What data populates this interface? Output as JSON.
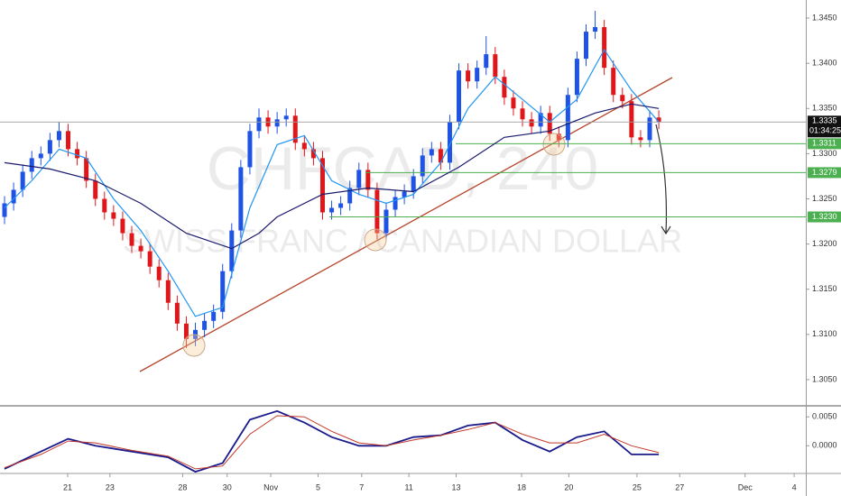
{
  "chart_data": [
    {
      "type": "candlestick",
      "watermark_symbol": "CHFCAD, 240",
      "watermark_name": "SWISS FRANC / CANADIAN DOLLAR",
      "up_color": "#1e53e5",
      "down_color": "#e0171a",
      "xlim": [
        -0.5,
        88.18
      ],
      "xticks": [
        {
          "value": 6.95,
          "label": "21"
        },
        {
          "value": 11.6,
          "label": "23"
        },
        {
          "value": 19.6,
          "label": "28"
        },
        {
          "value": 24.5,
          "label": "30"
        },
        {
          "value": 29.3,
          "label": "Nov"
        },
        {
          "value": 34.5,
          "label": "5"
        },
        {
          "value": 39.3,
          "label": "7"
        },
        {
          "value": 44.5,
          "label": "11"
        },
        {
          "value": 49.7,
          "label": "13"
        },
        {
          "value": 56.9,
          "label": "18"
        },
        {
          "value": 62.1,
          "label": "20"
        },
        {
          "value": 69.6,
          "label": "25"
        },
        {
          "value": 74.3,
          "label": "27"
        },
        {
          "value": 81.5,
          "label": "Dec"
        },
        {
          "value": 86.9,
          "label": "4"
        }
      ],
      "ylim": [
        1.3021,
        1.347
      ],
      "yticks": [
        {
          "value": 1.305,
          "label": "1.3050"
        },
        {
          "value": 1.31,
          "label": "1.3100"
        },
        {
          "value": 1.315,
          "label": "1.3150"
        },
        {
          "value": 1.32,
          "label": "1.3200"
        },
        {
          "value": 1.325,
          "label": "1.3250"
        },
        {
          "value": 1.33,
          "label": "1.3300"
        },
        {
          "value": 1.335,
          "label": "1.3350"
        },
        {
          "value": 1.34,
          "label": "1.3400"
        },
        {
          "value": 1.345,
          "label": "1.3450"
        }
      ],
      "open": [
        1.323,
        1.3245,
        1.326,
        1.328,
        1.3295,
        1.33,
        1.3315,
        1.3325,
        1.3305,
        1.3295,
        1.327,
        1.325,
        1.3235,
        1.3228,
        1.3212,
        1.3198,
        1.3192,
        1.3175,
        1.316,
        1.3135,
        1.3112,
        1.3095,
        1.3105,
        1.3115,
        1.3125,
        1.317,
        1.3215,
        1.3285,
        1.3325,
        1.334,
        1.333,
        1.3338,
        1.3342,
        1.3312,
        1.3305,
        1.3295,
        1.3235,
        1.324,
        1.3245,
        1.3262,
        1.3282,
        1.326,
        1.3212,
        1.3238,
        1.3252,
        1.3258,
        1.3275,
        1.3298,
        1.3305,
        1.329,
        1.3335,
        1.3392,
        1.338,
        1.3395,
        1.341,
        1.3385,
        1.3362,
        1.335,
        1.3338,
        1.333,
        1.3345,
        1.3322,
        1.3315,
        1.3365,
        1.3405,
        1.3435,
        1.344,
        1.3395,
        1.3365,
        1.3358,
        1.3318,
        1.3315,
        1.334
      ],
      "high": [
        1.3253,
        1.3268,
        1.3288,
        1.3303,
        1.3308,
        1.3323,
        1.3335,
        1.3333,
        1.3313,
        1.3303,
        1.3278,
        1.3258,
        1.3243,
        1.3236,
        1.322,
        1.3206,
        1.32,
        1.3183,
        1.3168,
        1.3143,
        1.312,
        1.3113,
        1.3123,
        1.3133,
        1.3178,
        1.3223,
        1.3293,
        1.3333,
        1.335,
        1.3348,
        1.3346,
        1.335,
        1.335,
        1.332,
        1.3313,
        1.3303,
        1.3248,
        1.3253,
        1.327,
        1.329,
        1.329,
        1.3268,
        1.3246,
        1.326,
        1.3266,
        1.3283,
        1.3306,
        1.3313,
        1.3313,
        1.3343,
        1.34,
        1.34,
        1.3403,
        1.343,
        1.3418,
        1.3393,
        1.337,
        1.3358,
        1.3346,
        1.3353,
        1.3353,
        1.333,
        1.3373,
        1.3413,
        1.3443,
        1.3458,
        1.3448,
        1.3403,
        1.3373,
        1.3366,
        1.3326,
        1.3348,
        1.3348
      ],
      "low": [
        1.3222,
        1.3237,
        1.3252,
        1.3272,
        1.3287,
        1.3292,
        1.3307,
        1.3297,
        1.3287,
        1.3262,
        1.3242,
        1.3227,
        1.322,
        1.3204,
        1.319,
        1.3184,
        1.3167,
        1.3152,
        1.3127,
        1.3104,
        1.3085,
        1.3087,
        1.3097,
        1.3107,
        1.3117,
        1.3162,
        1.3207,
        1.3277,
        1.3317,
        1.3322,
        1.3322,
        1.333,
        1.3304,
        1.3297,
        1.3287,
        1.3227,
        1.3227,
        1.3232,
        1.3237,
        1.3254,
        1.3252,
        1.3205,
        1.3204,
        1.323,
        1.3244,
        1.325,
        1.3267,
        1.329,
        1.3282,
        1.3282,
        1.3327,
        1.3372,
        1.3372,
        1.3387,
        1.3377,
        1.3354,
        1.3342,
        1.333,
        1.3322,
        1.3322,
        1.3314,
        1.3307,
        1.3307,
        1.3357,
        1.3397,
        1.3427,
        1.3387,
        1.3357,
        1.335,
        1.331,
        1.3307,
        1.3307,
        1.3327
      ],
      "close": [
        1.3245,
        1.326,
        1.328,
        1.3295,
        1.33,
        1.3315,
        1.3325,
        1.3305,
        1.3295,
        1.327,
        1.325,
        1.3235,
        1.3228,
        1.3212,
        1.3198,
        1.3192,
        1.3175,
        1.316,
        1.3135,
        1.3112,
        1.3095,
        1.3105,
        1.3115,
        1.3125,
        1.317,
        1.3215,
        1.3285,
        1.3325,
        1.334,
        1.333,
        1.3338,
        1.3342,
        1.3312,
        1.3305,
        1.3295,
        1.3235,
        1.324,
        1.3245,
        1.3262,
        1.3282,
        1.326,
        1.3212,
        1.3238,
        1.3252,
        1.3258,
        1.3275,
        1.3298,
        1.3305,
        1.329,
        1.3335,
        1.3392,
        1.338,
        1.3395,
        1.341,
        1.3385,
        1.3362,
        1.335,
        1.3338,
        1.333,
        1.3345,
        1.3322,
        1.3315,
        1.3365,
        1.3405,
        1.3435,
        1.344,
        1.3395,
        1.3365,
        1.3358,
        1.3318,
        1.3315,
        1.334,
        1.3335
      ],
      "indicators": [
        {
          "color": "#2196f3",
          "x": [
            0,
            3,
            6,
            9,
            12,
            15,
            18,
            21,
            24,
            27,
            30,
            33,
            36,
            39,
            42,
            45,
            48,
            51,
            54,
            57,
            60,
            63,
            66,
            69,
            72
          ],
          "values": [
            1.324,
            1.327,
            1.3305,
            1.3295,
            1.325,
            1.3215,
            1.317,
            1.312,
            1.313,
            1.324,
            1.331,
            1.332,
            1.327,
            1.3255,
            1.3245,
            1.3255,
            1.329,
            1.335,
            1.3385,
            1.336,
            1.3335,
            1.336,
            1.3415,
            1.337,
            1.3335
          ]
        },
        {
          "color": "#1a1a6e",
          "x": [
            0,
            5,
            10,
            15,
            20,
            25,
            28,
            30,
            35,
            40,
            45,
            50,
            55,
            60,
            65,
            69,
            72
          ],
          "values": [
            1.329,
            1.3283,
            1.327,
            1.3245,
            1.3212,
            1.3195,
            1.3212,
            1.323,
            1.3255,
            1.3262,
            1.3258,
            1.3285,
            1.3318,
            1.3325,
            1.3345,
            1.3355,
            1.335
          ]
        }
      ],
      "levels": [
        {
          "value": 1.3311,
          "label": "1.3311"
        },
        {
          "value": 1.3279,
          "label": "1.3279"
        },
        {
          "value": 1.323,
          "label": "1.3230"
        }
      ],
      "level_color": "#4caf50",
      "last_price": {
        "value": 1.3335,
        "label": "1.3335"
      },
      "countdown": "01:34:25"
    },
    {
      "type": "line",
      "xlim": [
        -0.5,
        88.18
      ],
      "ylim": [
        -0.0048,
        0.0066
      ],
      "yticks": [
        {
          "value": 0.005,
          "label": "0.0050"
        },
        {
          "value": 0,
          "label": "0.0000"
        }
      ],
      "x": [
        0,
        4,
        7,
        10,
        14,
        18,
        21,
        24,
        27,
        30,
        33,
        36,
        39,
        42,
        45,
        48,
        51,
        54,
        57,
        60,
        63,
        66,
        69,
        72
      ],
      "series": [
        {
          "color": "#1a1a8c",
          "values": [
            -0.004,
            -0.001,
            0.0012,
            0.0,
            -0.001,
            -0.002,
            -0.0045,
            -0.003,
            0.0045,
            0.006,
            0.004,
            0.0015,
            0.0,
            0.0,
            0.0015,
            0.0018,
            0.0035,
            0.004,
            0.001,
            -0.001,
            0.0015,
            0.0025,
            -0.0015,
            -0.0015
          ]
        },
        {
          "color": "#c0392b",
          "values": [
            -0.0038,
            -0.0015,
            0.0008,
            0.0005,
            -0.0008,
            -0.0018,
            -0.004,
            -0.0035,
            0.002,
            0.0052,
            0.005,
            0.0025,
            0.0005,
            0.0,
            0.001,
            0.0018,
            0.0028,
            0.004,
            0.002,
            0.0005,
            0.0005,
            0.002,
            0.0,
            -0.0012
          ]
        }
      ]
    }
  ]
}
